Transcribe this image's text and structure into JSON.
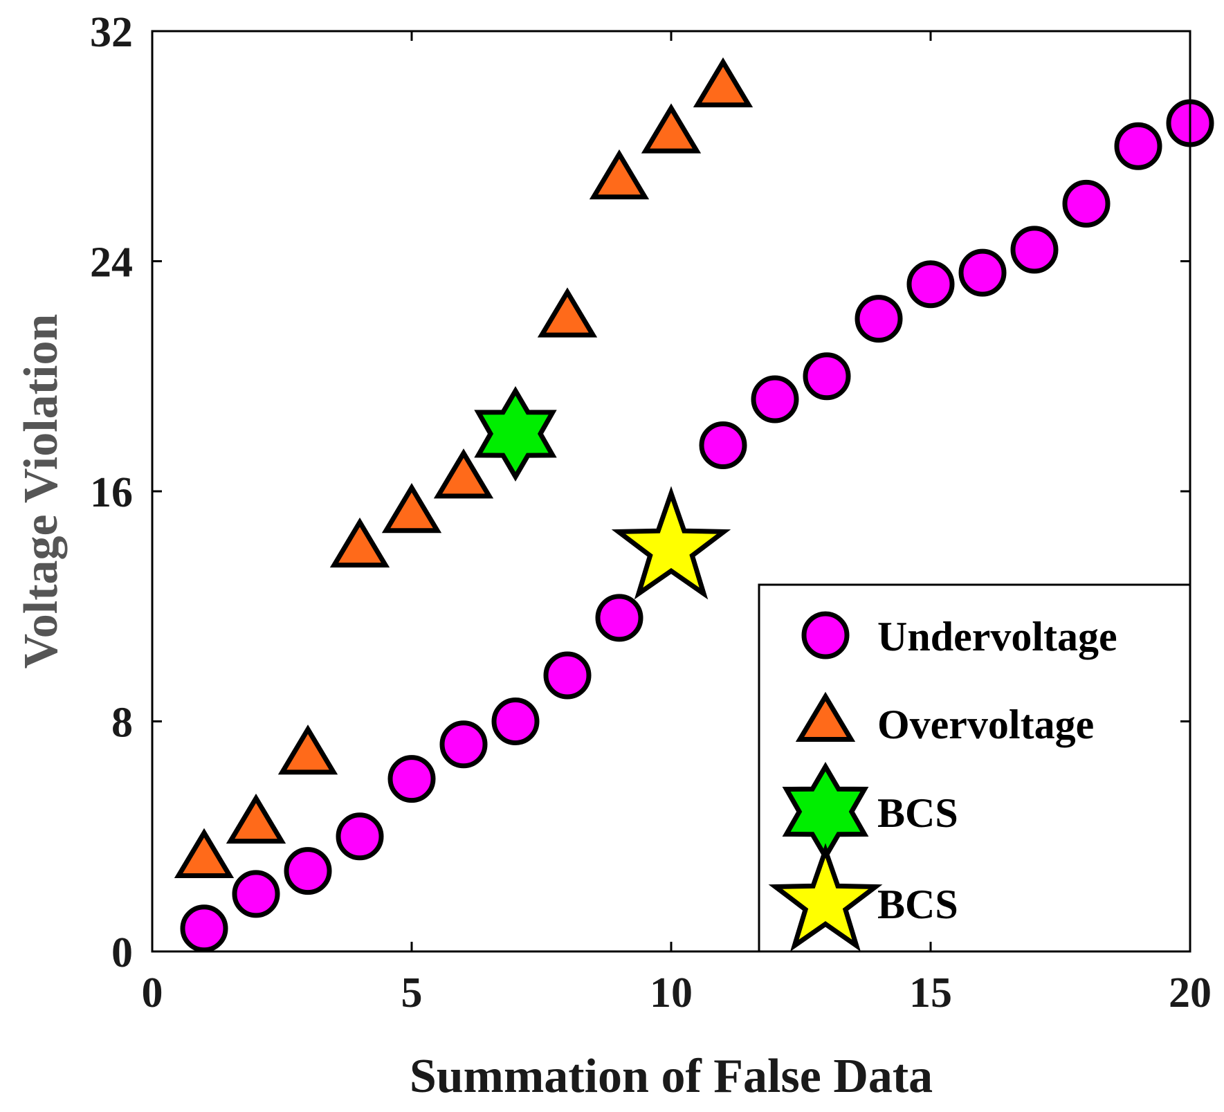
{
  "chart_data": {
    "type": "scatter",
    "title": "",
    "xlabel": "Summation of False Data",
    "ylabel": "Voltage Violation",
    "xlim": [
      0,
      20
    ],
    "ylim": [
      0,
      32
    ],
    "xticks": [
      0,
      5,
      10,
      15,
      20
    ],
    "yticks": [
      0,
      8,
      16,
      24,
      32
    ],
    "grid": false,
    "legend_position": "bottom-right",
    "series": [
      {
        "name": "Undervoltage",
        "marker": "circle",
        "color": "#ff00ff",
        "x": [
          1,
          2,
          3,
          4,
          5,
          6,
          7,
          8,
          9,
          11,
          12,
          13,
          14,
          15,
          16,
          17,
          18,
          19,
          20
        ],
        "y": [
          0.8,
          2.0,
          2.8,
          4.0,
          6.0,
          7.2,
          8.0,
          9.6,
          11.6,
          17.6,
          19.2,
          20.0,
          22.0,
          23.2,
          23.6,
          24.4,
          26.0,
          28.0,
          28.8
        ]
      },
      {
        "name": "Overvoltage",
        "marker": "triangle",
        "color": "#ff6a1a",
        "x": [
          1,
          2,
          3,
          4,
          5,
          6,
          8,
          9,
          10,
          11
        ],
        "y": [
          3.2,
          4.4,
          6.8,
          14.0,
          15.2,
          16.4,
          22.0,
          26.8,
          28.4,
          30.0
        ]
      },
      {
        "name": "BCS",
        "marker": "hexagram",
        "color": "#00ee00",
        "x": [
          7
        ],
        "y": [
          18.0
        ]
      },
      {
        "name": "BCS",
        "marker": "star",
        "color": "#ffff00",
        "x": [
          10
        ],
        "y": [
          14.0
        ]
      }
    ]
  }
}
